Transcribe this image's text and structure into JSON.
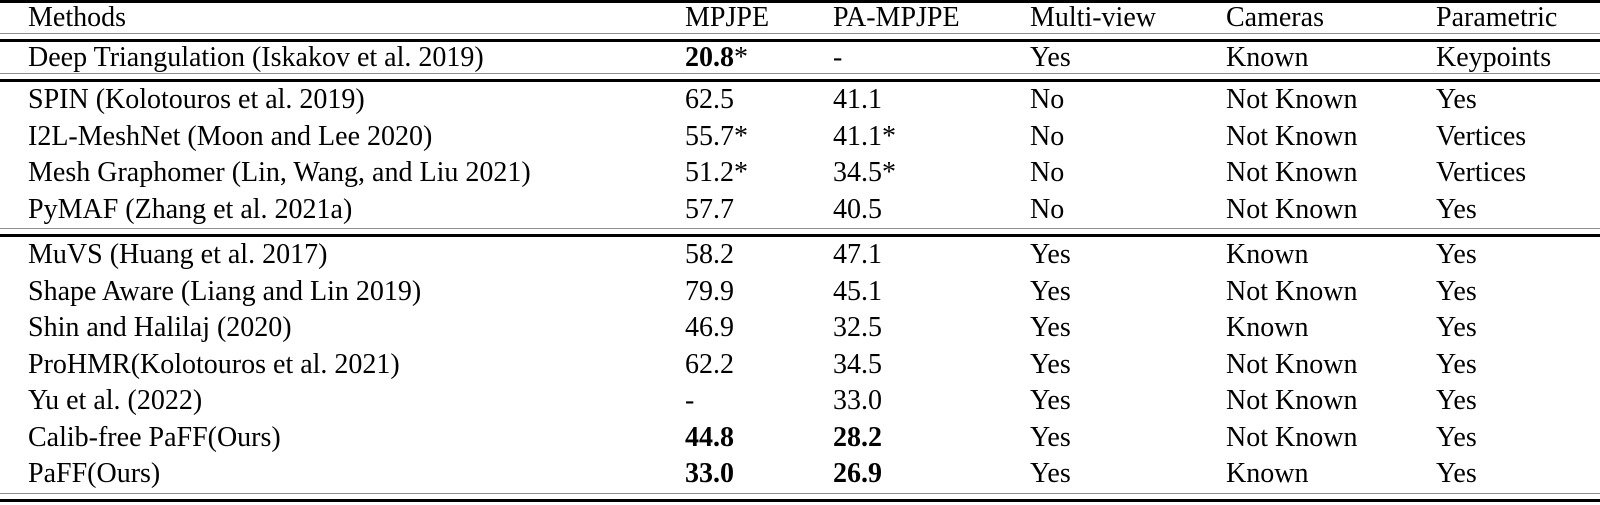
{
  "colors": {
    "background": "#ffffff",
    "text": "#000000",
    "thick_rule": "#000000",
    "thin_rule": "#8f8f8f"
  },
  "table": {
    "columns": [
      {
        "label": "Methods"
      },
      {
        "label": "MPJPE"
      },
      {
        "label": "PA-MPJPE"
      },
      {
        "label": "Multi-view"
      },
      {
        "label": "Cameras"
      },
      {
        "label": "Parametric"
      }
    ],
    "groups": [
      {
        "rows": [
          {
            "method": "Deep Triangulation (Iskakov et al. 2019)",
            "mpjpe": {
              "text": "20.8",
              "suffix": "*",
              "bold": true
            },
            "pa_mpjpe": {
              "text": "-",
              "suffix": "",
              "bold": false
            },
            "multi_view": "Yes",
            "cameras": "Known",
            "parametric": "Keypoints"
          }
        ]
      },
      {
        "rows": [
          {
            "method": "SPIN (Kolotouros et al. 2019)",
            "mpjpe": {
              "text": "62.5",
              "suffix": "",
              "bold": false
            },
            "pa_mpjpe": {
              "text": "41.1",
              "suffix": "",
              "bold": false
            },
            "multi_view": "No",
            "cameras": "Not Known",
            "parametric": "Yes"
          },
          {
            "method": "I2L-MeshNet (Moon and Lee 2020)",
            "mpjpe": {
              "text": "55.7",
              "suffix": "*",
              "bold": false
            },
            "pa_mpjpe": {
              "text": "41.1",
              "suffix": "*",
              "bold": false
            },
            "multi_view": "No",
            "cameras": "Not Known",
            "parametric": "Vertices"
          },
          {
            "method": "Mesh Graphomer (Lin, Wang, and Liu 2021)",
            "mpjpe": {
              "text": "51.2",
              "suffix": "*",
              "bold": false
            },
            "pa_mpjpe": {
              "text": "34.5",
              "suffix": "*",
              "bold": false
            },
            "multi_view": "No",
            "cameras": "Not Known",
            "parametric": "Vertices"
          },
          {
            "method": "PyMAF (Zhang et al. 2021a)",
            "mpjpe": {
              "text": "57.7",
              "suffix": "",
              "bold": false
            },
            "pa_mpjpe": {
              "text": "40.5",
              "suffix": "",
              "bold": false
            },
            "multi_view": "No",
            "cameras": "Not Known",
            "parametric": "Yes"
          }
        ]
      },
      {
        "rows": [
          {
            "method": "MuVS (Huang et al. 2017)",
            "mpjpe": {
              "text": "58.2",
              "suffix": "",
              "bold": false
            },
            "pa_mpjpe": {
              "text": "47.1",
              "suffix": "",
              "bold": false
            },
            "multi_view": "Yes",
            "cameras": "Known",
            "parametric": "Yes"
          },
          {
            "method": "Shape Aware (Liang and Lin 2019)",
            "mpjpe": {
              "text": "79.9",
              "suffix": "",
              "bold": false
            },
            "pa_mpjpe": {
              "text": "45.1",
              "suffix": "",
              "bold": false
            },
            "multi_view": "Yes",
            "cameras": "Not Known",
            "parametric": "Yes"
          },
          {
            "method": "Shin and Halilaj (2020)",
            "mpjpe": {
              "text": "46.9",
              "suffix": "",
              "bold": false
            },
            "pa_mpjpe": {
              "text": "32.5",
              "suffix": "",
              "bold": false
            },
            "multi_view": "Yes",
            "cameras": "Known",
            "parametric": "Yes"
          },
          {
            "method": "ProHMR(Kolotouros et al. 2021)",
            "mpjpe": {
              "text": "62.2",
              "suffix": "",
              "bold": false
            },
            "pa_mpjpe": {
              "text": "34.5",
              "suffix": "",
              "bold": false
            },
            "multi_view": "Yes",
            "cameras": "Not Known",
            "parametric": "Yes"
          },
          {
            "method": "Yu et al. (2022)",
            "mpjpe": {
              "text": "-",
              "suffix": "",
              "bold": false
            },
            "pa_mpjpe": {
              "text": "33.0",
              "suffix": "",
              "bold": false
            },
            "multi_view": "Yes",
            "cameras": "Not Known",
            "parametric": "Yes"
          },
          {
            "method": "Calib-free PaFF(Ours)",
            "mpjpe": {
              "text": "44.8",
              "suffix": "",
              "bold": true
            },
            "pa_mpjpe": {
              "text": "28.2",
              "suffix": "",
              "bold": true
            },
            "multi_view": "Yes",
            "cameras": "Not Known",
            "parametric": "Yes"
          },
          {
            "method": "PaFF(Ours)",
            "mpjpe": {
              "text": "33.0",
              "suffix": "",
              "bold": true
            },
            "pa_mpjpe": {
              "text": "26.9",
              "suffix": "",
              "bold": true
            },
            "multi_view": "Yes",
            "cameras": "Known",
            "parametric": "Yes"
          }
        ]
      }
    ]
  }
}
